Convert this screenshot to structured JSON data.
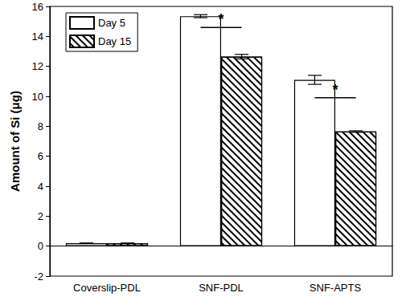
{
  "chart_data": {
    "type": "bar",
    "y_label": "Amount of Si (μg)",
    "categories": [
      "Coverslip-PDL",
      "SNF-PDL",
      "SNF-APTS"
    ],
    "series": [
      {
        "name": "Day 5",
        "color": "#ffffff",
        "values": [
          0.2,
          15.35,
          11.1
        ],
        "errors": [
          0,
          0.1,
          0.3
        ]
      },
      {
        "name": "Day 15",
        "color": "#ffffff",
        "values": [
          0.2,
          12.65,
          7.65
        ],
        "errors": [
          0,
          0.15,
          0.05
        ]
      }
    ],
    "ylim": [
      -2,
      16
    ],
    "yticks": [
      -2,
      0,
      2,
      4,
      6,
      8,
      10,
      12,
      14,
      16
    ],
    "grid": false,
    "legend": "upper left",
    "annotations": [
      {
        "text": "*",
        "category": "SNF-PDL",
        "y": 14.6
      },
      {
        "text": "*",
        "category": "SNF-APTS",
        "y": 9.9
      }
    ]
  }
}
